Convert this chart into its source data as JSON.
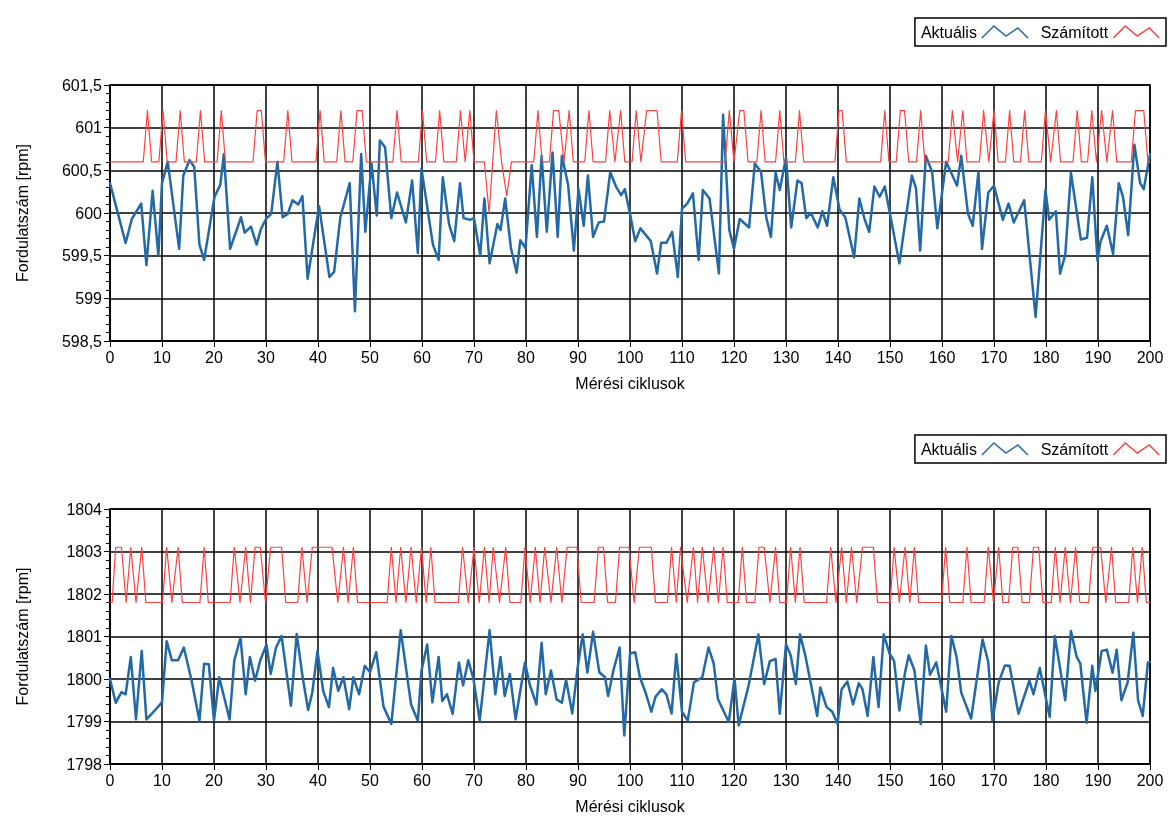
{
  "chart_data": [
    {
      "type": "line",
      "xlabel": "Mérési ciklusok",
      "ylabel": "Fordulatszám [rpm]",
      "xlim": [
        0,
        200
      ],
      "xticks": [
        0,
        10,
        20,
        30,
        40,
        50,
        60,
        70,
        80,
        90,
        100,
        110,
        120,
        130,
        140,
        150,
        160,
        170,
        180,
        190,
        200
      ],
      "ylim": [
        598.5,
        601.5
      ],
      "yticks": [
        {
          "value": 598.5,
          "label": "598,5"
        },
        599,
        {
          "value": 599.5,
          "label": "599,5"
        },
        600,
        {
          "value": 600.5,
          "label": "600,5"
        },
        601,
        {
          "value": 601.5,
          "label": "601,5"
        }
      ],
      "grid": true,
      "legend": "top right",
      "marker": "none",
      "line_style": "solid",
      "series": [
        {
          "name": "Aktuális",
          "color": "#2369a6",
          "x": [
            0,
            3,
            4.2,
            6,
            7,
            8.2,
            9.3,
            10,
            11.1,
            13.3,
            14.1,
            15.3,
            16.2,
            17.2,
            18.1,
            20.1,
            21.2,
            21.9,
            23.1,
            25.2,
            25.9,
            27.1,
            28.2,
            29,
            30,
            31,
            32.2,
            33.2,
            34.2,
            35.1,
            36.2,
            37,
            38,
            40.2,
            42.2,
            43.1,
            44.3,
            46.1,
            47.1,
            48.3,
            49.1,
            50.3,
            51.3,
            51.9,
            52.9,
            54.1,
            55.2,
            56.9,
            58.1,
            59.2,
            59.9,
            62.1,
            63.2,
            64,
            65.2,
            66.2,
            67.3,
            68,
            69.2,
            70,
            71.2,
            72,
            73,
            74.5,
            75.1,
            76,
            77.1,
            78.2,
            78.9,
            79.9,
            81.1,
            82.1,
            83,
            84,
            85.1,
            86.1,
            86.9,
            88.1,
            89.2,
            90.1,
            91.1,
            91.9,
            92.9,
            94,
            95,
            96.2,
            97.3,
            98.3,
            99,
            100,
            101,
            102,
            104,
            105.2,
            106,
            107,
            108.1,
            109.2,
            110,
            111,
            112.1,
            113.2,
            114,
            115.3,
            117.1,
            117.9,
            119.1,
            120,
            121.1,
            122.9,
            124,
            125.2,
            126.2,
            127.1,
            128,
            128.8,
            130,
            131,
            132.2,
            133,
            133.9,
            134.8,
            136.1,
            137,
            137.9,
            139.1,
            140.3,
            141.4,
            143.1,
            144.1,
            145.1,
            146,
            147,
            148,
            149,
            151.8,
            154.2,
            155,
            155.8,
            156.9,
            158.1,
            159.1,
            160.8,
            162.9,
            163.7,
            165,
            165.9,
            167,
            167.7,
            168.9,
            170,
            171.7,
            172.8,
            173.8,
            175.8,
            178,
            179.9,
            180.6,
            181.9,
            182.7,
            183.7,
            184.8,
            186.7,
            187.9,
            188.9,
            189.9,
            190.5,
            191.7,
            192.9,
            194,
            194.8,
            195.8,
            197,
            198.1,
            198.8,
            200
          ],
          "values": [
            600.35,
            599.65,
            599.93,
            600.11,
            599.39,
            600.26,
            599.5,
            600.35,
            600.6,
            599.58,
            600.44,
            600.62,
            600.54,
            599.63,
            599.45,
            600.19,
            600.33,
            600.69,
            599.58,
            599.95,
            599.77,
            599.84,
            599.63,
            599.81,
            599.93,
            599.99,
            600.6,
            599.95,
            599.99,
            600.15,
            600.1,
            600.2,
            599.23,
            600.08,
            599.25,
            599.31,
            599.95,
            600.35,
            598.85,
            600.69,
            599.78,
            600.58,
            599.97,
            600.85,
            600.77,
            599.94,
            600.24,
            599.89,
            600.38,
            599.53,
            600.52,
            599.63,
            599.45,
            600.42,
            599.87,
            599.67,
            600.35,
            599.94,
            599.92,
            599.94,
            599.5,
            600.17,
            599.41,
            599.87,
            599.8,
            600.17,
            599.59,
            599.3,
            599.68,
            599.59,
            600.56,
            599.72,
            600.67,
            599.78,
            600.71,
            599.72,
            600.67,
            600.33,
            599.56,
            600.28,
            599.85,
            600.44,
            599.72,
            599.89,
            599.9,
            600.48,
            600.31,
            600.21,
            600.28,
            599.99,
            599.67,
            599.82,
            599.67,
            599.29,
            599.65,
            599.65,
            599.78,
            599.25,
            600.05,
            600.11,
            600.23,
            599.45,
            600.27,
            600.17,
            599.29,
            601.15,
            599.8,
            599.58,
            599.93,
            599.83,
            600.58,
            600.48,
            599.95,
            599.72,
            600.47,
            600.27,
            600.65,
            599.83,
            600.38,
            600.35,
            599.94,
            600,
            599.83,
            600.02,
            599.85,
            600.42,
            600.04,
            599.95,
            599.48,
            600.17,
            599.93,
            599.78,
            600.31,
            600.19,
            600.31,
            599.41,
            600.44,
            600.29,
            599.56,
            600.67,
            600.48,
            599.82,
            600.6,
            600.32,
            600.67,
            599.99,
            599.85,
            600.48,
            599.58,
            600.24,
            600.32,
            599.92,
            600.11,
            599.89,
            600.15,
            598.78,
            600.27,
            599.92,
            600.02,
            599.29,
            599.51,
            600.47,
            599.69,
            599.71,
            600.42,
            599.44,
            599.67,
            599.85,
            599.52,
            600.35,
            600.19,
            599.74,
            600.8,
            600.35,
            600.28,
            600.69
          ]
        },
        {
          "name": "Számított",
          "color": "#ff4040",
          "x": [
            0,
            6.4,
            7.2,
            8,
            9.4,
            10.2,
            11,
            12.7,
            13.5,
            14.3,
            16.6,
            17.4,
            18.2,
            20.6,
            21.4,
            22.2,
            27.5,
            28.3,
            29.1,
            29.9,
            33.4,
            34.2,
            35,
            39.6,
            40.4,
            41.2,
            43.6,
            44.4,
            45.2,
            46.7,
            47.5,
            48.5,
            49.3,
            54.4,
            55.2,
            56,
            59.3,
            60.1,
            60.9,
            62.6,
            63.4,
            64.2,
            66.6,
            67.4,
            68.3,
            69.2,
            70,
            72,
            72.9,
            74.3,
            75.3,
            76.3,
            77.2,
            81.5,
            82.3,
            83.1,
            84.5,
            85.3,
            86.3,
            87.3,
            88.3,
            89.1,
            91.3,
            92.1,
            92.9,
            95.3,
            96.1,
            97.1,
            98.2,
            99,
            100.4,
            101.2,
            102.1,
            103.2,
            105.2,
            106,
            109.1,
            109.9,
            110.7,
            118.3,
            119.1,
            120,
            121.1,
            121.9,
            122.7,
            124.4,
            125.2,
            126,
            128,
            128.8,
            129.6,
            131.8,
            132.6,
            133.4,
            139.4,
            140.2,
            140.8,
            141.6,
            148.2,
            149,
            149.8,
            151.2,
            152,
            152.8,
            153.6,
            155.1,
            155.9,
            156.7,
            161.2,
            162,
            163,
            164,
            164.8,
            167.2,
            168,
            169,
            170,
            170.8,
            172.2,
            173,
            173.8,
            175.1,
            175.9,
            176.7,
            179.1,
            179.9,
            180.9,
            182,
            182.8,
            185.2,
            186,
            186.8,
            188,
            188.8,
            189.7,
            190.7,
            191.7,
            192.8,
            193.6,
            196.4,
            197.2,
            198.8,
            199.6,
            200
          ],
          "values": [
            600.6,
            600.6,
            601.2,
            600.6,
            600.6,
            601.2,
            600.6,
            600.6,
            601.2,
            600.6,
            600.6,
            601.2,
            600.6,
            600.6,
            601.2,
            600.6,
            600.6,
            601.2,
            601.2,
            600.6,
            600.6,
            601.2,
            600.6,
            600.6,
            601.2,
            600.6,
            600.6,
            601.2,
            600.6,
            600.6,
            601.2,
            601.2,
            600.6,
            600.6,
            601.2,
            600.6,
            600.6,
            601.2,
            600.6,
            600.6,
            601.2,
            600.6,
            600.6,
            601.2,
            600.6,
            601.2,
            600.6,
            600.6,
            600.0,
            601.2,
            600.6,
            600.2,
            600.6,
            600.6,
            601.2,
            600.6,
            600.6,
            601.2,
            601.2,
            600.6,
            601.2,
            600.6,
            600.6,
            601.2,
            600.6,
            600.6,
            601.2,
            600.6,
            601.2,
            600.6,
            600.6,
            601.2,
            600.6,
            601.2,
            601.2,
            600.6,
            600.6,
            601.2,
            600.6,
            600.6,
            601.2,
            600.6,
            601.2,
            601.2,
            600.6,
            600.6,
            601.2,
            600.6,
            600.6,
            601.2,
            600.6,
            600.6,
            601.2,
            600.6,
            600.6,
            601.2,
            601.2,
            600.6,
            600.6,
            601.2,
            600.6,
            600.6,
            601.2,
            601.2,
            600.6,
            600.6,
            601.2,
            600.6,
            600.6,
            601.2,
            600.6,
            601.2,
            600.6,
            600.6,
            601.2,
            600.6,
            601.2,
            600.6,
            600.6,
            601.2,
            600.6,
            600.6,
            601.2,
            600.6,
            600.6,
            601.2,
            600.6,
            601.2,
            600.6,
            600.6,
            601.2,
            600.6,
            600.6,
            601.2,
            600.6,
            601.2,
            600.6,
            601.2,
            600.6,
            600.6,
            601.2,
            601.2,
            600.6,
            600.6
          ]
        }
      ]
    },
    {
      "type": "line",
      "xlabel": "Mérési ciklusok",
      "ylabel": "Fordulatszám [rpm]",
      "xlim": [
        0,
        200
      ],
      "xticks": [
        0,
        10,
        20,
        30,
        40,
        50,
        60,
        70,
        80,
        90,
        100,
        110,
        120,
        130,
        140,
        150,
        160,
        170,
        180,
        190,
        200
      ],
      "ylim": [
        1798,
        1804
      ],
      "yticks": [
        1798,
        1799,
        1800,
        1801,
        1802,
        1803,
        1804
      ],
      "grid": true,
      "legend": "top right",
      "marker": "none",
      "line_style": "solid",
      "series": [
        {
          "name": "Aktuális",
          "color": "#2369a6",
          "x": [
            0,
            1.1,
            2.2,
            3,
            4,
            5,
            6.1,
            7,
            8.1,
            10,
            10.9,
            11.9,
            13.1,
            14.2,
            15.7,
            17.2,
            18.1,
            19,
            20,
            21,
            23,
            23.9,
            25.1,
            26.1,
            26.9,
            27.9,
            28.9,
            30.1,
            30.9,
            31.9,
            33,
            34.8,
            35.9,
            37.1,
            38.1,
            38.9,
            39.9,
            41,
            42.1,
            42.9,
            43.9,
            44.9,
            46,
            46.8,
            47.9,
            49,
            50,
            51.2,
            52.6,
            54.1,
            55.9,
            57.9,
            59.2,
            59.9,
            61,
            62,
            63.2,
            63.9,
            64.8,
            65.9,
            67.1,
            67.9,
            68.9,
            69.9,
            71.1,
            73,
            74.1,
            75.1,
            75.9,
            76.9,
            78,
            79.8,
            80.7,
            82,
            83,
            83.8,
            84.8,
            85.9,
            86.9,
            87.7,
            88.9,
            89.9,
            90.9,
            91.8,
            92.9,
            94.1,
            95.2,
            95.8,
            96.8,
            98,
            98.9,
            100,
            101,
            101.9,
            103.1,
            104.1,
            104.9,
            106.1,
            107,
            108,
            108.9,
            110,
            111.1,
            112.3,
            113.9,
            115.1,
            116.1,
            116.9,
            119,
            120.1,
            120.9,
            122.8,
            124.7,
            125.8,
            126.9,
            128,
            128.8,
            130,
            130.9,
            131.9,
            132.7,
            133.7,
            136,
            136.6,
            137.8,
            138.9,
            139.9,
            140.7,
            141.8,
            142.9,
            144,
            144.7,
            145.7,
            146.8,
            147.8,
            148.8,
            149.9,
            150.8,
            151.8,
            152.9,
            153.6,
            154.7,
            155.9,
            156.9,
            157.7,
            158.9,
            160.8,
            161.8,
            162.8,
            163.7,
            165.6,
            167.8,
            168.9,
            169.7,
            170.9,
            172.1,
            173,
            174.7,
            176.8,
            177.6,
            178.8,
            180.7,
            181.7,
            183.7,
            184.8,
            185.9,
            186.6,
            187.8,
            188.9,
            189.5,
            190.7,
            191.7,
            192.8,
            193.6,
            194.5,
            195.7,
            196.8,
            197.7,
            198.6,
            199.6,
            200
          ],
          "values": [
            1800,
            1799.44,
            1799.69,
            1799.64,
            1800.52,
            1799.05,
            1800.66,
            1799.05,
            1799.19,
            1799.45,
            1800.89,
            1800.44,
            1800.44,
            1800.74,
            1799.96,
            1799.02,
            1800.36,
            1800.35,
            1799.02,
            1800.04,
            1799.05,
            1800.44,
            1800.97,
            1799.64,
            1800.52,
            1799.96,
            1800.44,
            1800.81,
            1800.12,
            1800.73,
            1801.01,
            1799.37,
            1801.06,
            1800,
            1799.27,
            1799.68,
            1800.66,
            1799.72,
            1799.34,
            1800.26,
            1799.72,
            1800.04,
            1799.29,
            1800.04,
            1799.64,
            1800.31,
            1800.16,
            1800.63,
            1799.35,
            1798.94,
            1801.15,
            1799.4,
            1799.02,
            1800.2,
            1800.81,
            1799.45,
            1800.52,
            1799.48,
            1799.64,
            1799.18,
            1800.39,
            1799.85,
            1800.44,
            1800,
            1799.02,
            1801.15,
            1799.64,
            1800.52,
            1799.6,
            1800.12,
            1799.05,
            1800.39,
            1799.88,
            1799.4,
            1800.85,
            1799.64,
            1800.2,
            1799.52,
            1799.44,
            1799.98,
            1799.19,
            1800.24,
            1801.05,
            1800.15,
            1801.11,
            1800.16,
            1800.04,
            1799.6,
            1800.2,
            1800.74,
            1798.67,
            1800.6,
            1800.63,
            1800.04,
            1799.64,
            1799.23,
            1799.58,
            1799.76,
            1799.64,
            1799.19,
            1800.58,
            1799.23,
            1799.02,
            1799.92,
            1800.04,
            1800.74,
            1800.36,
            1799.53,
            1798.99,
            1800.02,
            1798.91,
            1799.84,
            1801.05,
            1799.88,
            1800.42,
            1800.47,
            1799.18,
            1800.82,
            1800.56,
            1799.88,
            1801.05,
            1800.56,
            1799.13,
            1799.8,
            1799.34,
            1799.23,
            1798.95,
            1799.76,
            1799.94,
            1799.4,
            1799.9,
            1799.76,
            1799.13,
            1800.52,
            1799.34,
            1801.05,
            1800.6,
            1800.42,
            1799.26,
            1800.16,
            1800.56,
            1800.2,
            1798.94,
            1800.79,
            1800.1,
            1800.39,
            1799.23,
            1801.01,
            1800.52,
            1799.68,
            1799.07,
            1800.93,
            1800.4,
            1799.02,
            1799.92,
            1800.32,
            1800.31,
            1799.18,
            1799.96,
            1799.64,
            1800.26,
            1799.11,
            1801.01,
            1799.5,
            1801.13,
            1800.52,
            1800.36,
            1798.97,
            1800.31,
            1799.72,
            1800.66,
            1800.69,
            1800.15,
            1800.69,
            1799.5,
            1799.92,
            1801.09,
            1799.5,
            1799.13,
            1800.39,
            1800.4
          ]
        },
        {
          "name": "Számított",
          "color": "#ff4040",
          "x": [
            0,
            0.4,
            1.1,
            2.2,
            3.1,
            4,
            5,
            6.1,
            6.9,
            10.1,
            10.9,
            11.9,
            13.1,
            13.9,
            17.3,
            18.1,
            18.9,
            23.1,
            23.9,
            25,
            26.1,
            27,
            27.9,
            28.9,
            29.9,
            30.9,
            33,
            33.8,
            36.1,
            36.9,
            37.9,
            38.9,
            42.7,
            43.8,
            44.9,
            45.8,
            46.8,
            47.6,
            53.3,
            54.1,
            55,
            55.9,
            56.9,
            57.9,
            58.9,
            59.9,
            60.8,
            61.7,
            62.5,
            67,
            67.8,
            68.9,
            70,
            71,
            72,
            72.9,
            73.7,
            74.9,
            76.1,
            76.9,
            79,
            79.8,
            80.8,
            81.8,
            82.7,
            83.6,
            84.8,
            85.9,
            86.9,
            87.9,
            89.8,
            90.6,
            93.1,
            93.9,
            94.9,
            95.7,
            97.2,
            98,
            99.8,
            100.8,
            101.8,
            104.1,
            104.9,
            107.2,
            108,
            108.9,
            109.7,
            111,
            112.2,
            113,
            113.9,
            115,
            116.1,
            117,
            117.9,
            118.7,
            120.8,
            121.6,
            122.4,
            124,
            124.8,
            125.8,
            126.9,
            128,
            128.8,
            130.1,
            130.9,
            131.8,
            132.7,
            133.5,
            137.8,
            138.6,
            139.6,
            140.7,
            141.6,
            142.6,
            143.6,
            144.7,
            146.8,
            147.6,
            150,
            150.8,
            151.8,
            152.9,
            153.8,
            154.7,
            155.5,
            159.9,
            160.7,
            161.5,
            164,
            164.8,
            165.6,
            168.1,
            168.9,
            169.9,
            170.9,
            171.7,
            172.8,
            173.6,
            174.6,
            175.4,
            176.8,
            177.6,
            178.6,
            179.4,
            181,
            181.8,
            182.7,
            183.7,
            184.7,
            185.7,
            186.5,
            188.2,
            189,
            190.5,
            191.5,
            192.6,
            193.4,
            195.9,
            196.7,
            197.6,
            198.5,
            199.3,
            200
          ],
          "values": [
            1801.8,
            1801.8,
            1803.1,
            1803.1,
            1801.8,
            1803.1,
            1801.8,
            1803.1,
            1801.8,
            1801.8,
            1803.1,
            1801.8,
            1803.1,
            1801.8,
            1801.8,
            1803.1,
            1801.8,
            1801.8,
            1803.1,
            1801.8,
            1803.1,
            1801.8,
            1803.1,
            1803.1,
            1801.8,
            1803.1,
            1803.1,
            1801.8,
            1801.8,
            1803.1,
            1801.8,
            1803.1,
            1803.1,
            1801.8,
            1803.1,
            1801.8,
            1803.1,
            1801.8,
            1801.8,
            1803.1,
            1801.8,
            1803.1,
            1801.8,
            1803.1,
            1801.8,
            1803.1,
            1801.8,
            1803.1,
            1801.8,
            1801.8,
            1803.1,
            1801.8,
            1803.1,
            1801.8,
            1803.1,
            1801.8,
            1803.1,
            1801.8,
            1803.1,
            1801.8,
            1801.8,
            1803.1,
            1801.8,
            1803.1,
            1801.8,
            1803.1,
            1801.8,
            1803.1,
            1801.8,
            1803.1,
            1803.1,
            1801.8,
            1801.8,
            1803.1,
            1803.1,
            1801.8,
            1801.8,
            1803.1,
            1803.1,
            1801.8,
            1803.1,
            1803.1,
            1801.8,
            1801.8,
            1803.1,
            1801.8,
            1803.1,
            1801.8,
            1803.1,
            1801.8,
            1803.1,
            1801.8,
            1803.1,
            1801.8,
            1803.1,
            1801.8,
            1801.8,
            1803.1,
            1801.8,
            1801.8,
            1803.1,
            1803.1,
            1801.8,
            1803.1,
            1801.8,
            1801.8,
            1803.1,
            1801.8,
            1803.1,
            1801.8,
            1801.8,
            1803.1,
            1801.8,
            1803.1,
            1801.8,
            1803.1,
            1801.8,
            1803.1,
            1803.1,
            1801.8,
            1801.8,
            1803.1,
            1801.8,
            1803.1,
            1801.8,
            1803.1,
            1801.8,
            1801.8,
            1803.1,
            1801.8,
            1801.8,
            1803.1,
            1801.8,
            1801.8,
            1803.1,
            1801.8,
            1803.1,
            1801.8,
            1801.8,
            1803.1,
            1803.1,
            1801.8,
            1801.8,
            1803.1,
            1803.1,
            1801.8,
            1801.8,
            1803.1,
            1801.8,
            1803.1,
            1801.8,
            1803.1,
            1801.8,
            1801.8,
            1803.1,
            1803.1,
            1801.8,
            1803.1,
            1801.8,
            1801.8,
            1803.1,
            1801.8,
            1803.1,
            1801.8,
            1801.8
          ]
        }
      ]
    }
  ]
}
